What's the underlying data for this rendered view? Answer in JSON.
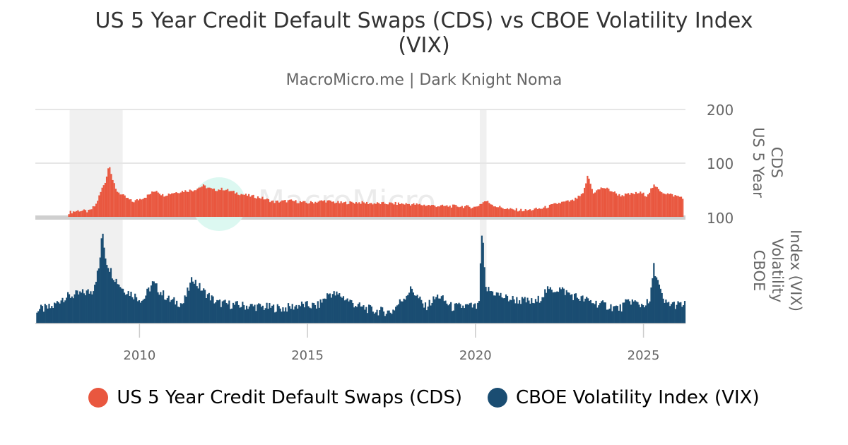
{
  "chart_data": {
    "type": "bar",
    "title": "US 5 Year Credit Default Swaps (CDS) vs CBOE Volatility Index (VIX)",
    "subtitle": "MacroMicro.me | Dark Knight Noma",
    "x_tick_labels": [
      "2010",
      "2015",
      "2020",
      "2025"
    ],
    "x_range": [
      2006.9,
      2026.25
    ],
    "recession_shading": [
      [
        2007.92,
        2009.5
      ],
      [
        2020.13,
        2020.33
      ]
    ],
    "watermark_text": "MacroMicro",
    "colors": {
      "cds": "#e9573f",
      "vix": "#1a4d72",
      "shade": "#f0f0f0",
      "grid": "#e6e6e6"
    },
    "panels": [
      {
        "name": "cds",
        "ylabel": "US 5 Year CDS",
        "y_tick_labels": [
          "200",
          "100",
          "100"
        ],
        "ylim": [
          0,
          200
        ]
      },
      {
        "name": "vix",
        "ylabel": "CBOE Volatility Index (VIX)",
        "ylim": [
          0,
          90
        ]
      }
    ],
    "series": [
      {
        "name": "US 5 Year Credit Default Swaps (CDS)",
        "panel": "cds",
        "x": [
          2007.9,
          2008.2,
          2008.5,
          2008.7,
          2008.9,
          2009.0,
          2009.1,
          2009.2,
          2009.3,
          2009.5,
          2009.8,
          2010.2,
          2010.5,
          2010.7,
          2011.0,
          2011.3,
          2011.6,
          2011.9,
          2012.2,
          2012.5,
          2012.8,
          2013.2,
          2013.6,
          2014.0,
          2014.5,
          2015.0,
          2015.5,
          2016.0,
          2016.5,
          2017.0,
          2017.5,
          2018.0,
          2018.5,
          2019.0,
          2019.5,
          2020.0,
          2020.3,
          2020.6,
          2021.0,
          2021.5,
          2022.0,
          2022.5,
          2022.9,
          2023.2,
          2023.35,
          2023.5,
          2023.8,
          2024.0,
          2024.3,
          2024.6,
          2024.9,
          2025.1,
          2025.3,
          2025.6,
          2025.9,
          2026.2
        ],
        "values": [
          8,
          12,
          10,
          22,
          55,
          68,
          100,
          70,
          50,
          40,
          28,
          38,
          50,
          40,
          45,
          48,
          50,
          58,
          50,
          52,
          46,
          40,
          36,
          28,
          30,
          26,
          30,
          26,
          27,
          25,
          25,
          24,
          22,
          20,
          20,
          18,
          30,
          20,
          14,
          12,
          16,
          26,
          30,
          42,
          78,
          45,
          55,
          50,
          40,
          42,
          45,
          40,
          58,
          45,
          40,
          36
        ]
      },
      {
        "name": "CBOE Volatility Index (VIX)",
        "panel": "vix",
        "x": [
          2007.0,
          2007.4,
          2007.7,
          2008.0,
          2008.3,
          2008.6,
          2008.8,
          2008.9,
          2009.0,
          2009.2,
          2009.5,
          2009.8,
          2010.1,
          2010.4,
          2010.6,
          2010.9,
          2011.3,
          2011.6,
          2011.7,
          2011.9,
          2012.3,
          2012.8,
          2013.3,
          2013.8,
          2014.3,
          2014.8,
          2015.3,
          2015.65,
          2016.0,
          2016.5,
          2017.0,
          2017.5,
          2018.1,
          2018.5,
          2018.9,
          2019.3,
          2019.8,
          2020.1,
          2020.2,
          2020.3,
          2020.6,
          2020.9,
          2021.3,
          2021.8,
          2022.1,
          2022.5,
          2022.9,
          2023.3,
          2023.8,
          2024.3,
          2024.6,
          2024.9,
          2025.2,
          2025.3,
          2025.6,
          2026.0
        ],
        "values": [
          12,
          14,
          22,
          24,
          26,
          28,
          48,
          80,
          55,
          42,
          30,
          25,
          20,
          35,
          28,
          20,
          17,
          40,
          34,
          28,
          18,
          16,
          15,
          14,
          13,
          16,
          15,
          26,
          24,
          15,
          11,
          10,
          30,
          14,
          24,
          14,
          15,
          14,
          82,
          30,
          26,
          22,
          20,
          18,
          28,
          30,
          24,
          20,
          16,
          13,
          20,
          16,
          18,
          50,
          18,
          16
        ]
      }
    ]
  },
  "legend": {
    "items": [
      {
        "label": "US 5 Year Credit Default Swaps (CDS)",
        "color": "#e9573f"
      },
      {
        "label": "CBOE Volatility Index (VIX)",
        "color": "#1a4d72"
      }
    ]
  }
}
